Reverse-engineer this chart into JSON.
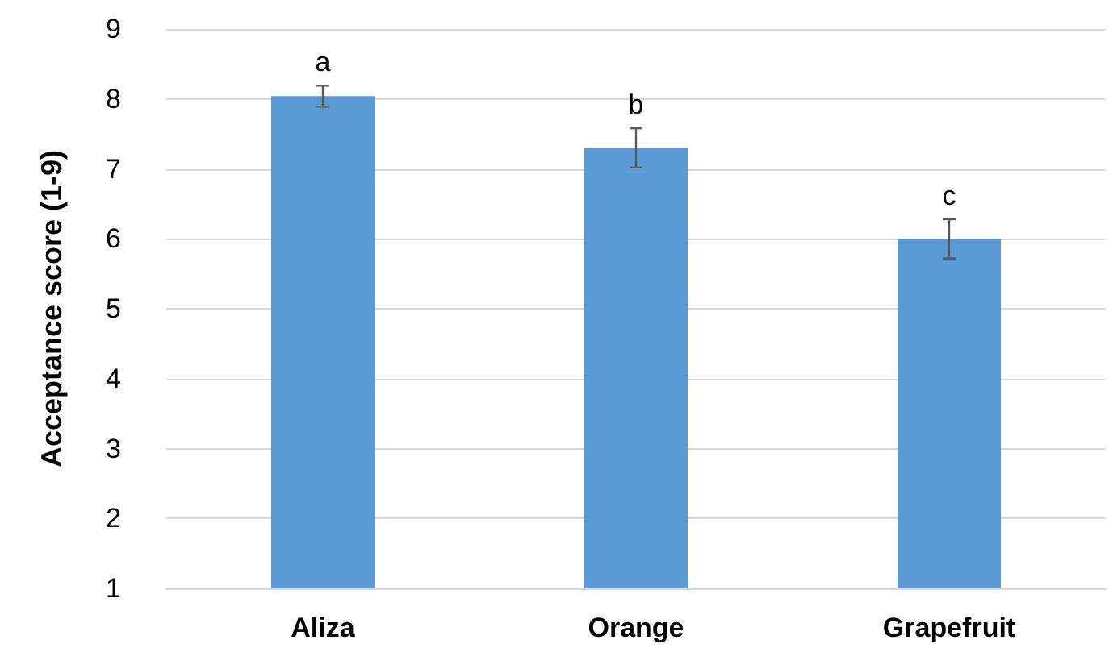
{
  "chart_data": {
    "type": "bar",
    "ylabel": "Acceptance score (1-9)",
    "categories": [
      "Aliza",
      "Orange",
      "Grapefruit"
    ],
    "values": [
      8.04,
      7.3,
      6.0
    ],
    "errors": [
      0.15,
      0.28,
      0.28
    ],
    "color": "#5b9bd5",
    "ylim": [
      1,
      9
    ],
    "yticks": [
      1,
      2,
      3,
      4,
      5,
      6,
      7,
      8,
      9
    ],
    "grid": "y",
    "annotations": [
      {
        "text": "a",
        "x": "Aliza",
        "y": 8.19
      },
      {
        "text": "b",
        "x": "Orange",
        "y": 7.58
      },
      {
        "text": "c",
        "x": "Grapefruit",
        "y": 6.28
      }
    ]
  }
}
